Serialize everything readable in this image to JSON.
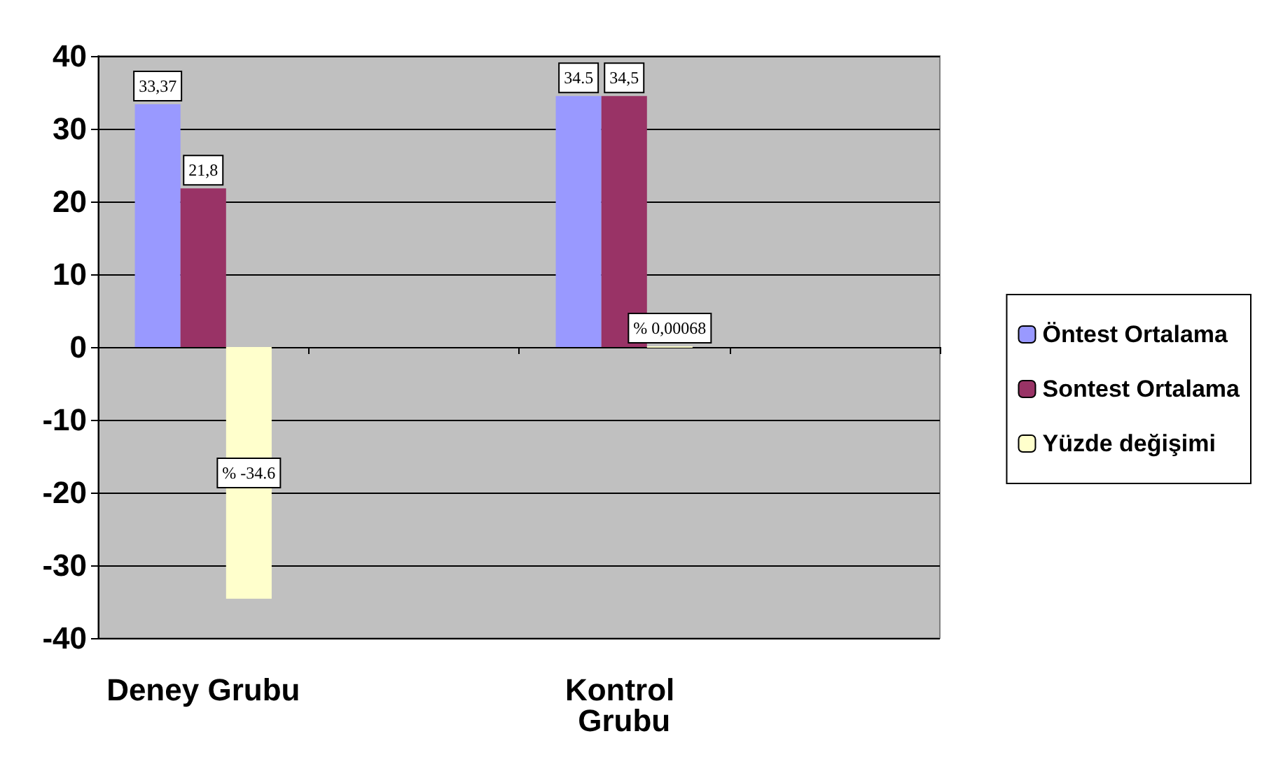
{
  "chart_data": {
    "type": "bar",
    "categories": [
      "Deney Grubu",
      null,
      "Kontrol Grubu",
      null
    ],
    "series": [
      {
        "name": "Öntest Ortalama",
        "color": "#9999ff",
        "values": [
          33.37,
          null,
          34.5,
          null
        ],
        "value_labels": [
          "33,37",
          null,
          "34.5",
          null
        ]
      },
      {
        "name": "Sontest Ortalama",
        "color": "#993366",
        "values": [
          21.8,
          null,
          34.5,
          null
        ],
        "value_labels": [
          "21,8",
          null,
          "34,5",
          null
        ]
      },
      {
        "name": "Yüzde değişimi",
        "color": "#ffffcc",
        "values": [
          -34.6,
          null,
          0.00068,
          null
        ],
        "value_labels": [
          "% -34.6",
          null,
          "% 0,00068",
          null
        ]
      }
    ],
    "ylim": [
      -40,
      40
    ],
    "yticks": [
      -40,
      -30,
      -20,
      -10,
      0,
      10,
      20,
      30,
      40
    ],
    "grid": "y",
    "legend": "right"
  }
}
